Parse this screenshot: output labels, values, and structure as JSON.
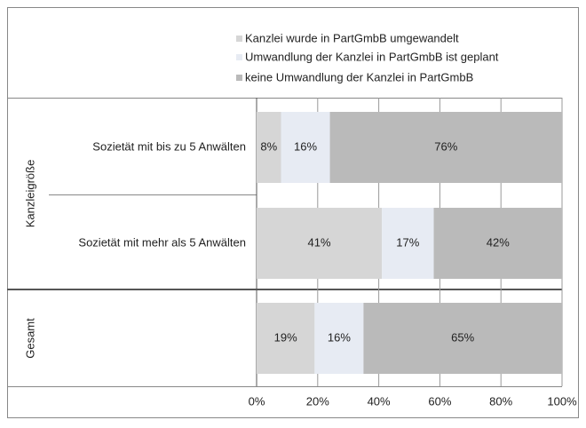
{
  "chart_data": {
    "type": "stacked-bar-horizontal",
    "groups": [
      "Kanzleigröße",
      "Gesamt"
    ],
    "categories": [
      "Sozietät mit bis zu 5 Anwälten",
      "Sozietät mit mehr als 5 Anwälten",
      null
    ],
    "series": [
      {
        "name": "Kanzlei wurde in PartGmbB umgewandelt",
        "color": "#d6d6d6",
        "values": [
          8,
          41,
          19
        ],
        "value_labels": [
          "8%",
          "41%",
          "19%"
        ]
      },
      {
        "name": "Umwandlung der Kanzlei in PartGmbB ist geplant",
        "color": "#e7ebf3",
        "values": [
          16,
          17,
          16
        ],
        "value_labels": [
          "16%",
          "17%",
          "16%"
        ]
      },
      {
        "name": "keine Umwandlung der Kanzlei in PartGmbB",
        "color": "#bababa",
        "values": [
          76,
          42,
          65
        ],
        "value_labels": [
          "76%",
          "42%",
          "65%"
        ]
      }
    ],
    "xlim": [
      0,
      100
    ],
    "xticks": [
      {
        "value": 0,
        "label": "0%"
      },
      {
        "value": 20,
        "label": "20%"
      },
      {
        "value": 40,
        "label": "40%"
      },
      {
        "value": 60,
        "label": "60%"
      },
      {
        "value": 80,
        "label": "80%"
      },
      {
        "value": 100,
        "label": "100%"
      }
    ],
    "grid": true
  }
}
